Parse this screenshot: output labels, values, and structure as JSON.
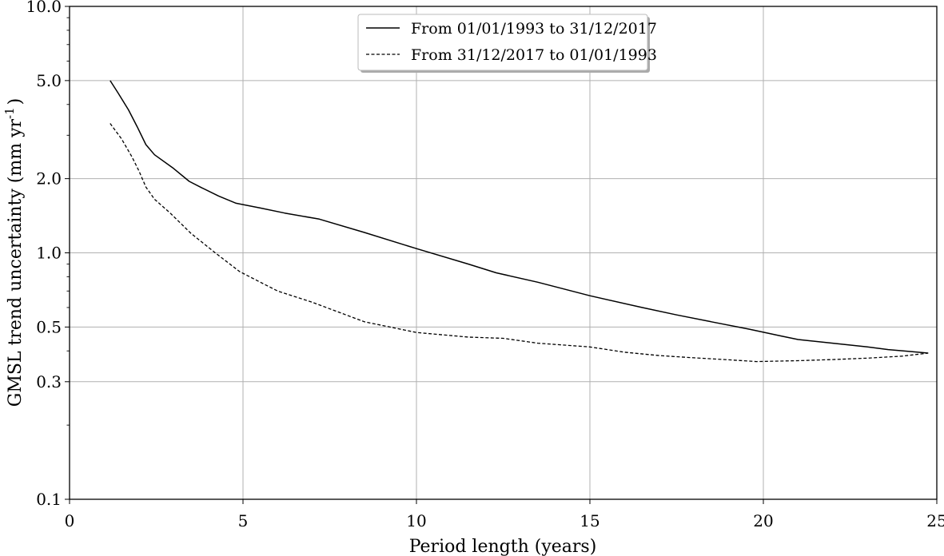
{
  "chart_data": {
    "type": "line",
    "xlabel": "Period length (years)",
    "ylabel": "GMSL trend uncertainty (mm yr",
    "ylabel_sup": "-1",
    "ylabel_close": ")",
    "xlim": [
      0,
      25
    ],
    "ylim": [
      0.1,
      10.0
    ],
    "yscale": "log",
    "grid": true,
    "legend_position": "top-center",
    "x_ticks": [
      {
        "value": 0,
        "label": "0"
      },
      {
        "value": 5,
        "label": "5"
      },
      {
        "value": 10,
        "label": "10"
      },
      {
        "value": 15,
        "label": "15"
      },
      {
        "value": 20,
        "label": "20"
      },
      {
        "value": 25,
        "label": "25"
      }
    ],
    "y_ticks": [
      {
        "value": 0.1,
        "label": "0.1"
      },
      {
        "value": 0.3,
        "label": "0.3"
      },
      {
        "value": 0.5,
        "label": "0.5"
      },
      {
        "value": 1.0,
        "label": "1.0"
      },
      {
        "value": 2.0,
        "label": "2.0"
      },
      {
        "value": 5.0,
        "label": "5.0"
      },
      {
        "value": 10.0,
        "label": "10.0"
      }
    ],
    "series": [
      {
        "name": "From 01/01/1993 to 31/12/2017",
        "style": "solid",
        "color": "#000000",
        "x": [
          1.17,
          1.4,
          1.7,
          1.95,
          2.2,
          2.45,
          3.0,
          3.45,
          3.8,
          4.3,
          4.8,
          5.5,
          6.2,
          7.2,
          8.5,
          10.0,
          11.5,
          12.3,
          13.5,
          15.0,
          16.5,
          17.5,
          18.5,
          19.6,
          20.5,
          21.0,
          22.0,
          23.0,
          23.6,
          24.3,
          24.75
        ],
        "values": [
          5.0,
          4.45,
          3.8,
          3.25,
          2.75,
          2.5,
          2.2,
          1.95,
          1.84,
          1.7,
          1.59,
          1.52,
          1.45,
          1.37,
          1.21,
          1.04,
          0.9,
          0.83,
          0.76,
          0.67,
          0.6,
          0.56,
          0.525,
          0.49,
          0.46,
          0.445,
          0.43,
          0.415,
          0.405,
          0.397,
          0.392
        ]
      },
      {
        "name": "From 31/12/2017 to 01/01/1993",
        "style": "dashed",
        "color": "#000000",
        "x": [
          1.17,
          1.5,
          1.8,
          2.0,
          2.2,
          2.45,
          2.9,
          3.5,
          4.2,
          4.9,
          5.5,
          6.0,
          7.0,
          8.5,
          10.0,
          11.5,
          12.5,
          13.5,
          15.0,
          16.0,
          17.0,
          18.0,
          19.0,
          19.8,
          21.0,
          22.0,
          23.0,
          24.0,
          24.75
        ],
        "values": [
          3.35,
          2.9,
          2.45,
          2.15,
          1.85,
          1.65,
          1.45,
          1.2,
          1.0,
          0.84,
          0.76,
          0.7,
          0.63,
          0.525,
          0.475,
          0.455,
          0.45,
          0.43,
          0.415,
          0.395,
          0.383,
          0.375,
          0.368,
          0.362,
          0.365,
          0.369,
          0.374,
          0.381,
          0.392
        ]
      }
    ]
  }
}
